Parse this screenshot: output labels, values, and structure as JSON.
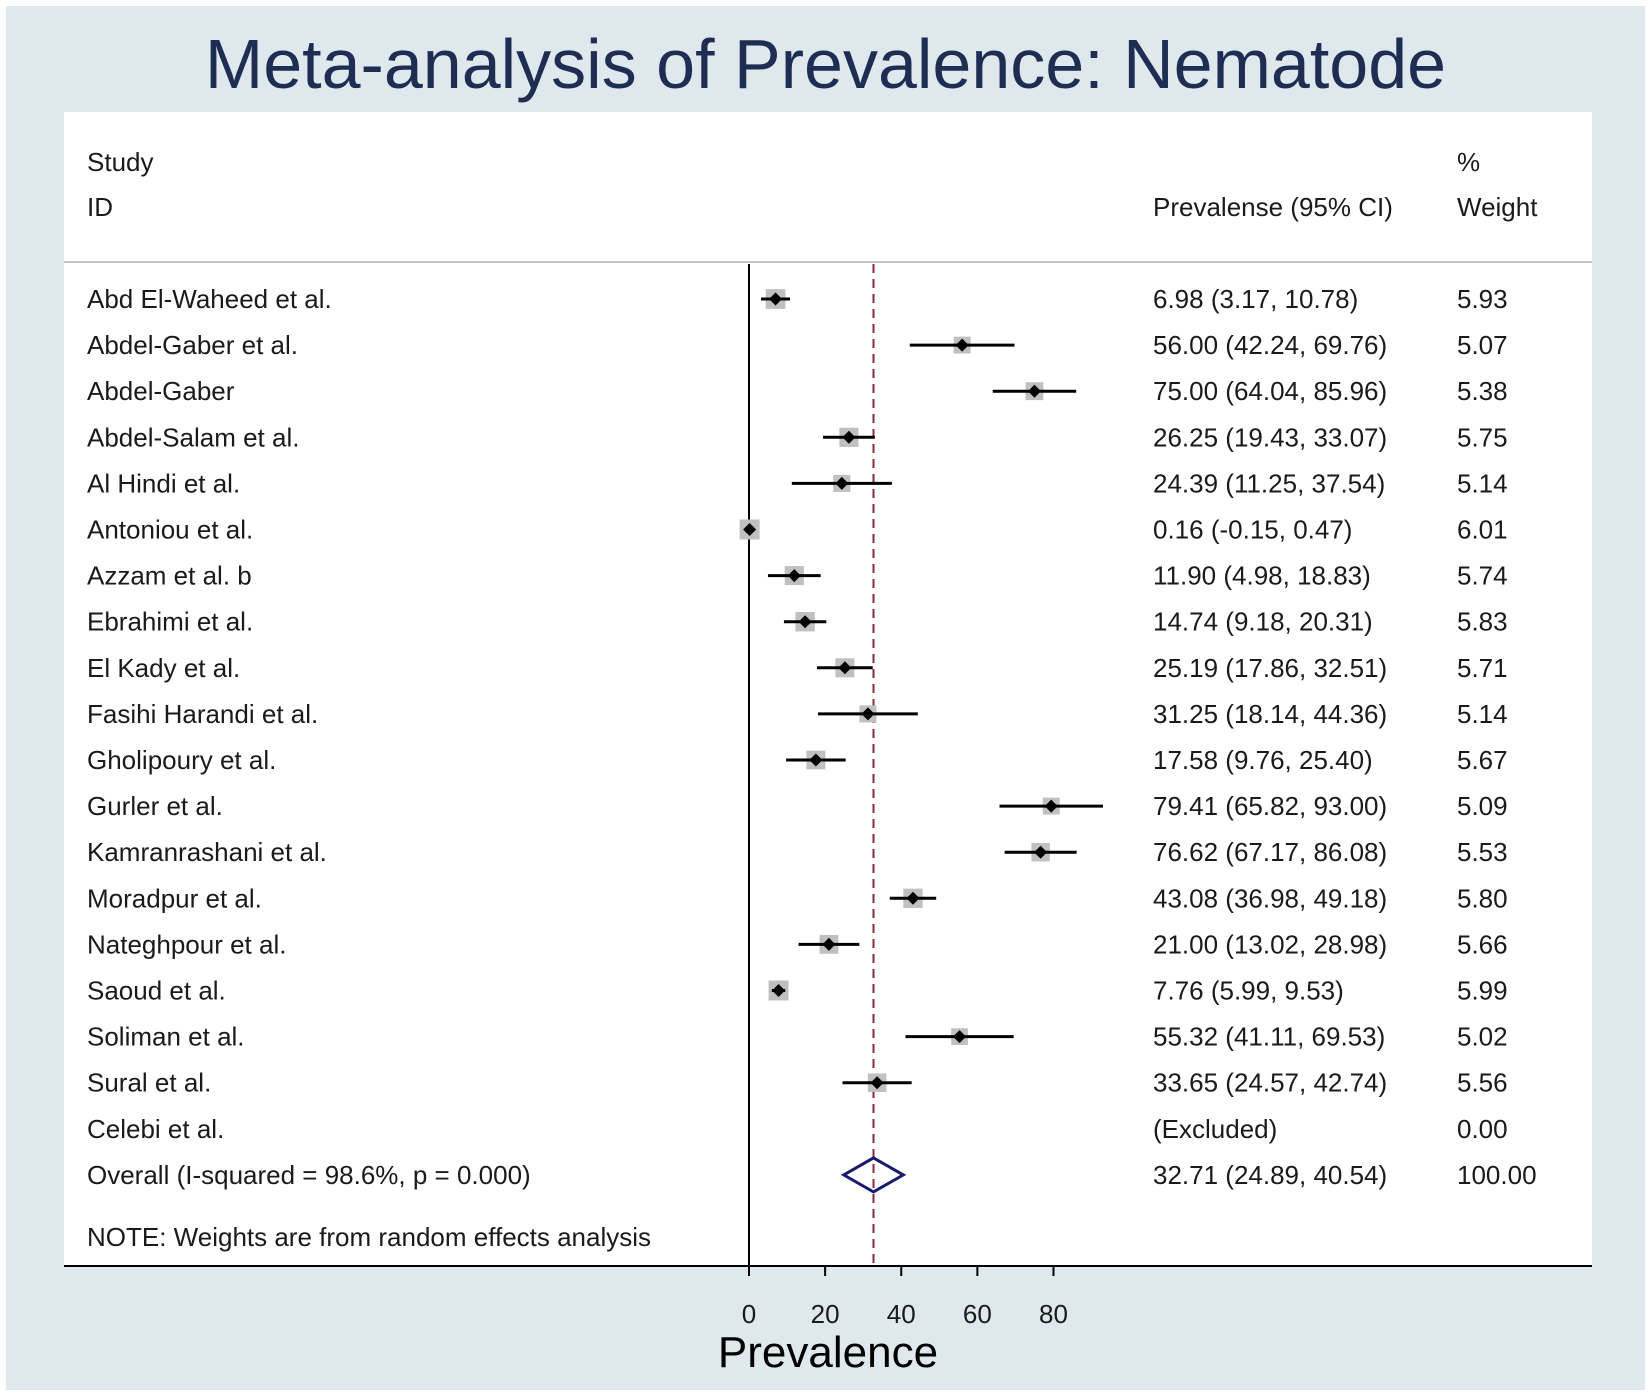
{
  "title": "Meta-analysis of Prevalence: Nematode",
  "headers": {
    "study_line1": "Study",
    "study_line2": "ID",
    "estimate": "Prevalense (95% CI)",
    "weight_line1": "%",
    "weight_line2": "Weight"
  },
  "note": "NOTE: Weights are from random effects analysis",
  "colors": {
    "background": "#dfe8ec",
    "title": "#1e2d52",
    "weight_box": "#c0c0c0",
    "point": "#000000",
    "overall_diamond": "#1a1a6e",
    "overall_line": "#8b2b3a"
  },
  "chart_data": {
    "type": "forest",
    "title": "Meta-analysis of Prevalence: Nematode",
    "xlabel": "Prevalence",
    "xlim": [
      0,
      80
    ],
    "xticks": [
      0,
      20,
      40,
      60,
      80
    ],
    "studies": [
      {
        "id": "Abd El-Waheed et al.",
        "es": 6.98,
        "lo": 3.17,
        "hi": 10.78,
        "ci_text": "6.98 (3.17, 10.78)",
        "weight": 5.93,
        "weight_text": "5.93"
      },
      {
        "id": "Abdel-Gaber et al.",
        "es": 56.0,
        "lo": 42.24,
        "hi": 69.76,
        "ci_text": "56.00 (42.24, 69.76)",
        "weight": 5.07,
        "weight_text": "5.07"
      },
      {
        "id": "Abdel-Gaber",
        "es": 75.0,
        "lo": 64.04,
        "hi": 85.96,
        "ci_text": "75.00 (64.04, 85.96)",
        "weight": 5.38,
        "weight_text": "5.38"
      },
      {
        "id": "Abdel-Salam et al.",
        "es": 26.25,
        "lo": 19.43,
        "hi": 33.07,
        "ci_text": "26.25 (19.43, 33.07)",
        "weight": 5.75,
        "weight_text": "5.75"
      },
      {
        "id": "Al Hindi et al.",
        "es": 24.39,
        "lo": 11.25,
        "hi": 37.54,
        "ci_text": "24.39 (11.25, 37.54)",
        "weight": 5.14,
        "weight_text": "5.14"
      },
      {
        "id": "Antoniou et al.",
        "es": 0.16,
        "lo": -0.15,
        "hi": 0.47,
        "ci_text": "0.16 (-0.15, 0.47)",
        "weight": 6.01,
        "weight_text": "6.01"
      },
      {
        "id": "Azzam et al. b",
        "es": 11.9,
        "lo": 4.98,
        "hi": 18.83,
        "ci_text": "11.90 (4.98, 18.83)",
        "weight": 5.74,
        "weight_text": "5.74"
      },
      {
        "id": "Ebrahimi et al.",
        "es": 14.74,
        "lo": 9.18,
        "hi": 20.31,
        "ci_text": "14.74 (9.18, 20.31)",
        "weight": 5.83,
        "weight_text": "5.83"
      },
      {
        "id": "El Kady et al.",
        "es": 25.19,
        "lo": 17.86,
        "hi": 32.51,
        "ci_text": "25.19 (17.86, 32.51)",
        "weight": 5.71,
        "weight_text": "5.71"
      },
      {
        "id": "Fasihi Harandi et al.",
        "es": 31.25,
        "lo": 18.14,
        "hi": 44.36,
        "ci_text": "31.25 (18.14, 44.36)",
        "weight": 5.14,
        "weight_text": "5.14"
      },
      {
        "id": "Gholipoury et al.",
        "es": 17.58,
        "lo": 9.76,
        "hi": 25.4,
        "ci_text": "17.58 (9.76, 25.40)",
        "weight": 5.67,
        "weight_text": "5.67"
      },
      {
        "id": "Gurler et al.",
        "es": 79.41,
        "lo": 65.82,
        "hi": 93.0,
        "ci_text": "79.41 (65.82, 93.00)",
        "weight": 5.09,
        "weight_text": "5.09"
      },
      {
        "id": "Kamranrashani et al.",
        "es": 76.62,
        "lo": 67.17,
        "hi": 86.08,
        "ci_text": "76.62 (67.17, 86.08)",
        "weight": 5.53,
        "weight_text": "5.53"
      },
      {
        "id": "Moradpur et al.",
        "es": 43.08,
        "lo": 36.98,
        "hi": 49.18,
        "ci_text": "43.08 (36.98, 49.18)",
        "weight": 5.8,
        "weight_text": "5.80"
      },
      {
        "id": "Nateghpour et al.",
        "es": 21.0,
        "lo": 13.02,
        "hi": 28.98,
        "ci_text": "21.00 (13.02, 28.98)",
        "weight": 5.66,
        "weight_text": "5.66"
      },
      {
        "id": "Saoud et al.",
        "es": 7.76,
        "lo": 5.99,
        "hi": 9.53,
        "ci_text": "7.76 (5.99, 9.53)",
        "weight": 5.99,
        "weight_text": "5.99"
      },
      {
        "id": "Soliman et al.",
        "es": 55.32,
        "lo": 41.11,
        "hi": 69.53,
        "ci_text": "55.32 (41.11, 69.53)",
        "weight": 5.02,
        "weight_text": "5.02"
      },
      {
        "id": "Sural et al.",
        "es": 33.65,
        "lo": 24.57,
        "hi": 42.74,
        "ci_text": "33.65 (24.57, 42.74)",
        "weight": 5.56,
        "weight_text": "5.56"
      },
      {
        "id": "Celebi et al.",
        "es": null,
        "lo": null,
        "hi": null,
        "ci_text": "(Excluded)",
        "weight": 0.0,
        "weight_text": "0.00"
      }
    ],
    "overall": {
      "label": "Overall  (I-squared = 98.6%, p = 0.000)",
      "es": 32.71,
      "lo": 24.89,
      "hi": 40.54,
      "ci_text": "32.71 (24.89, 40.54)",
      "weight_text": "100.00"
    }
  }
}
